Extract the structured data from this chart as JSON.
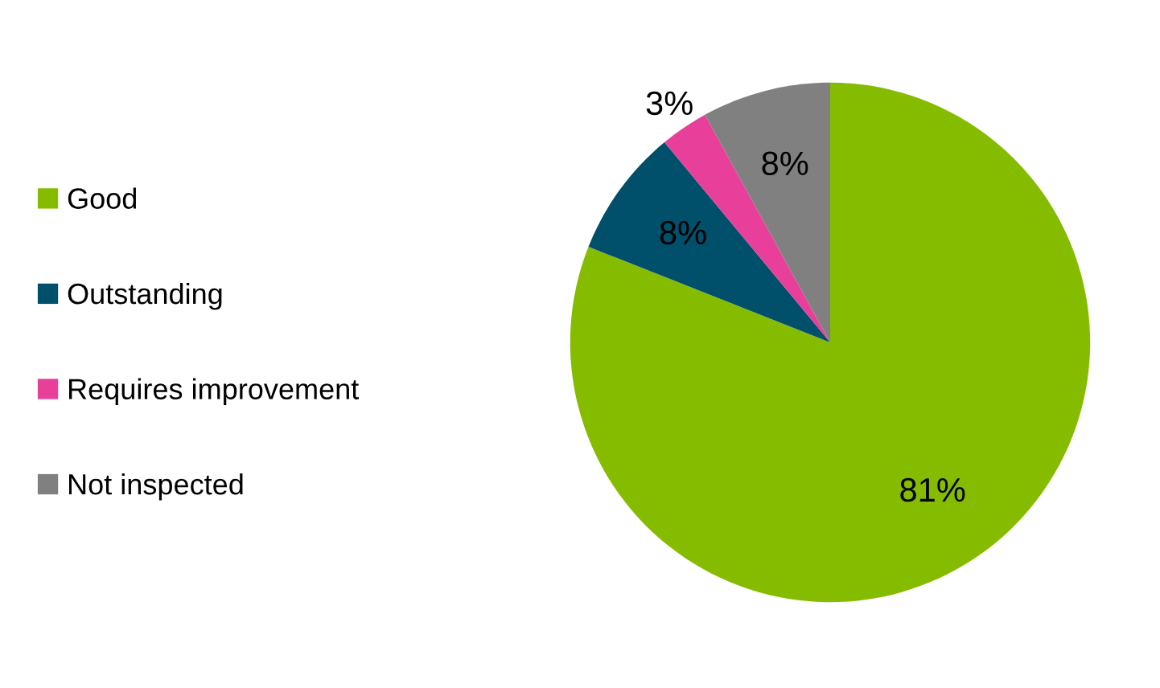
{
  "chart_data": {
    "type": "pie",
    "categories": [
      "Good",
      "Outstanding",
      "Requires improvement",
      "Not inspected"
    ],
    "values": [
      81,
      8,
      3,
      8
    ],
    "colors": [
      "#86bc00",
      "#004f6b",
      "#e8409a",
      "#808080"
    ],
    "value_labels": [
      "81%",
      "8%",
      "3%",
      "8%"
    ],
    "legend": "left"
  }
}
